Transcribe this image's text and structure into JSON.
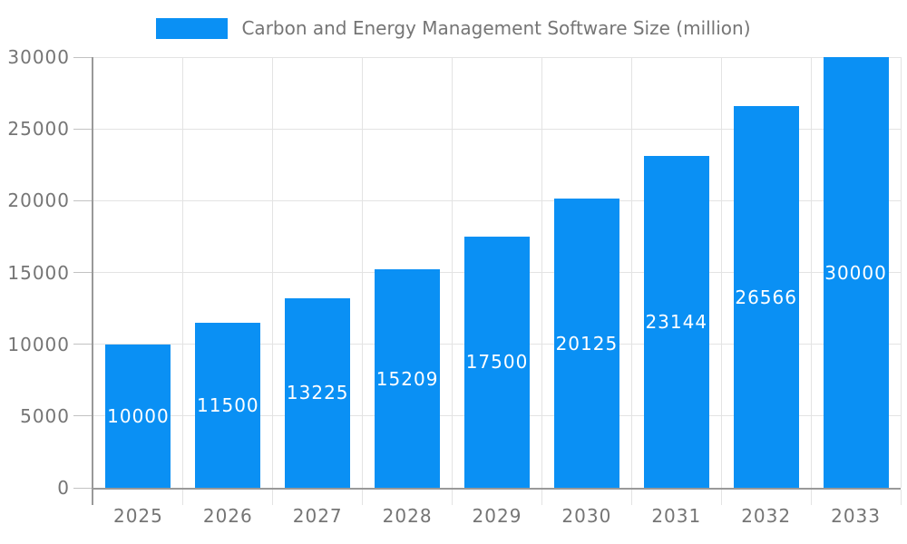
{
  "chart_data": {
    "type": "bar",
    "title": "Carbon and Energy Management Software Size (million)",
    "legend_position": "top",
    "categories": [
      "2025",
      "2026",
      "2027",
      "2028",
      "2029",
      "2030",
      "2031",
      "2032",
      "2033"
    ],
    "values": [
      10000,
      11500,
      13225,
      15209,
      17500,
      20125,
      23144,
      26566,
      30000
    ],
    "value_labels": [
      "10000",
      "11500",
      "13225",
      "15209",
      "17500",
      "20125",
      "23144",
      "26566",
      "30000"
    ],
    "xlabel": "",
    "ylabel": "",
    "ylim": [
      0,
      30000
    ],
    "yticks": [
      0,
      5000,
      10000,
      15000,
      20000,
      25000,
      30000
    ],
    "grid": true,
    "colors": {
      "bar": "#0a90f4",
      "bar_label": "#ffffff",
      "axis_label": "#757575",
      "legend_text": "#757575",
      "gridline": "#e3e3e3",
      "axis_line": "#999999",
      "tick": "#c2c2c2"
    }
  }
}
